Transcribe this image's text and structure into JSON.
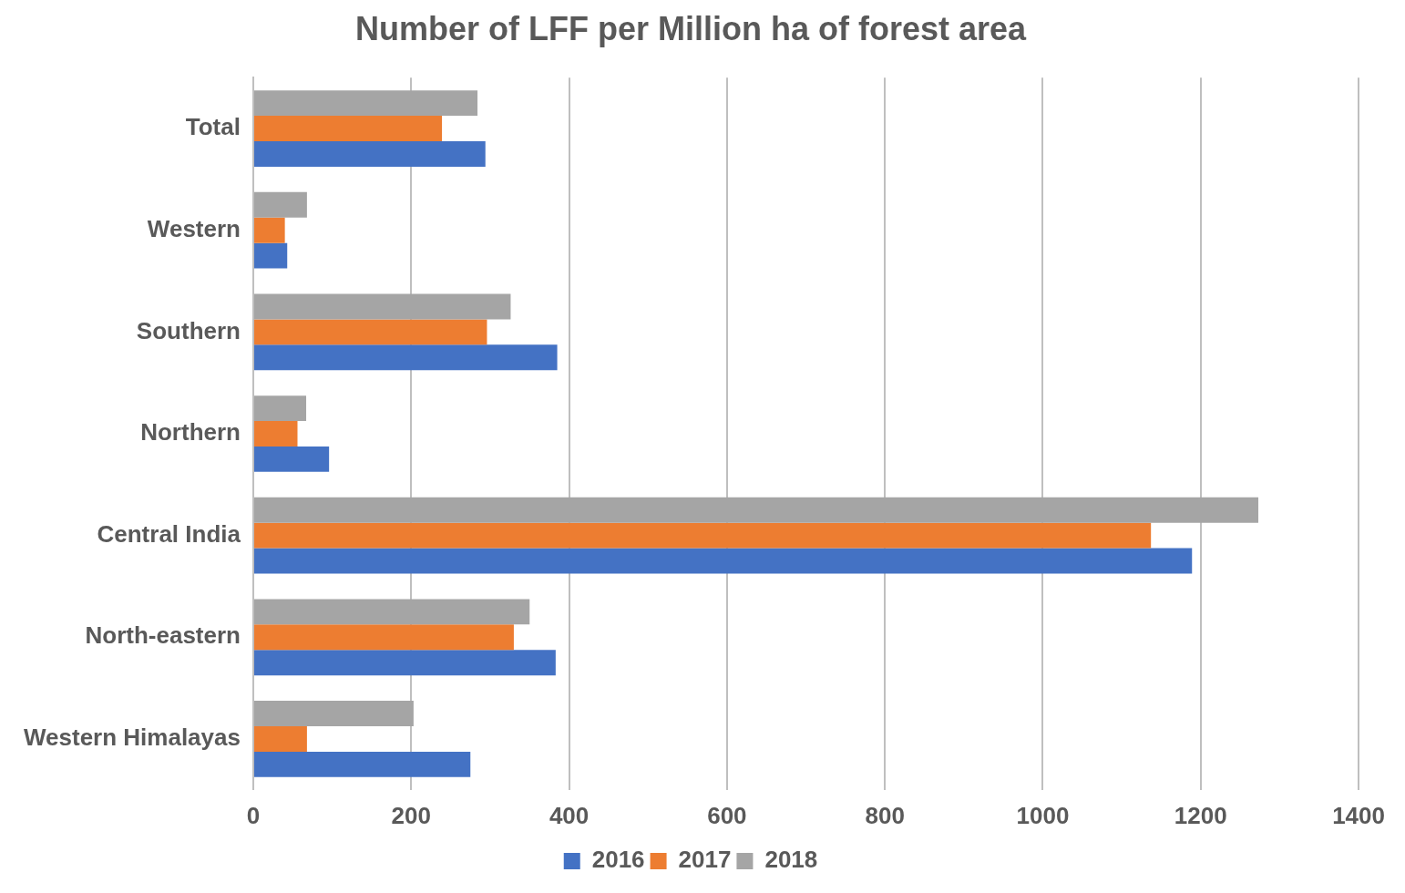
{
  "chart_data": {
    "type": "bar",
    "orientation": "horizontal",
    "title": "Number of LFF per Million ha of forest area",
    "categories": [
      "Total",
      "Western",
      "Southern",
      "Northern",
      "Central India",
      "North-eastern",
      "Western Himalayas"
    ],
    "series": [
      {
        "name": "2016",
        "color": "#4472c4",
        "values": [
          294,
          43,
          385,
          96,
          1189,
          383,
          275
        ]
      },
      {
        "name": "2017",
        "color": "#ed7d31",
        "values": [
          239,
          40,
          296,
          56,
          1137,
          330,
          68
        ]
      },
      {
        "name": "2018",
        "color": "#a5a5a5",
        "values": [
          284,
          68,
          326,
          67,
          1273,
          350,
          203
        ]
      }
    ],
    "xlim": [
      0,
      1400
    ],
    "xticks": [
      0,
      200,
      400,
      600,
      800,
      1000,
      1200,
      1400
    ],
    "grid": "x",
    "legend": "bottom"
  }
}
